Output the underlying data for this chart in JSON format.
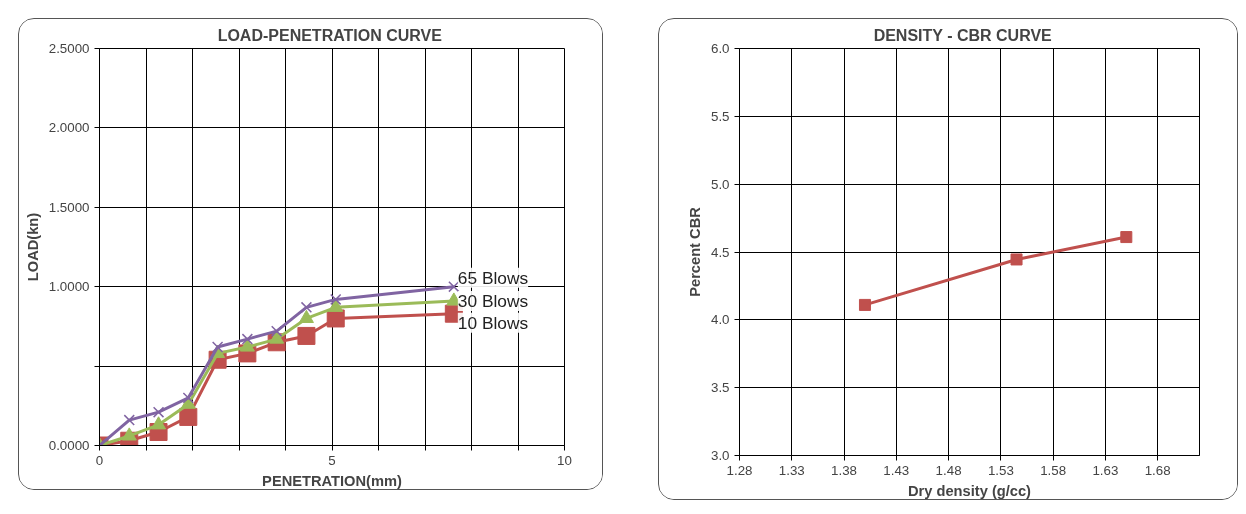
{
  "chart_data": [
    {
      "type": "line",
      "title": "LOAD-PENETRATION  CURVE",
      "xlabel": "PENETRATION(mm)",
      "ylabel": "LOAD(kn)",
      "x": [
        0,
        0.64,
        1.27,
        1.91,
        2.54,
        3.18,
        3.81,
        4.45,
        5.08,
        7.62
      ],
      "series": [
        {
          "name": "10 Blows",
          "color": "#c0504d",
          "marker": "square",
          "values": [
            0,
            0.03,
            0.085,
            0.18,
            0.54,
            0.58,
            0.65,
            0.69,
            0.8,
            0.83
          ]
        },
        {
          "name": "30 Blows",
          "color": "#9bbb59",
          "marker": "triangle",
          "values": [
            0,
            0.06,
            0.13,
            0.26,
            0.58,
            0.62,
            0.67,
            0.8,
            0.87,
            0.91
          ]
        },
        {
          "name": "65 Blows",
          "color": "#8064a2",
          "marker": "cross",
          "values": [
            0,
            0.16,
            0.21,
            0.3,
            0.62,
            0.67,
            0.72,
            0.87,
            0.92,
            1.0
          ]
        }
      ],
      "xlim": [
        0,
        10
      ],
      "xticks": [
        0,
        {
          "value": 1,
          "label": null
        },
        {
          "value": 2,
          "label": null
        },
        {
          "value": 3,
          "label": null
        },
        {
          "value": 4,
          "label": null
        },
        5,
        {
          "value": 6,
          "label": null
        },
        {
          "value": 7,
          "label": null
        },
        {
          "value": 8,
          "label": null
        },
        {
          "value": 9,
          "label": null
        },
        10
      ],
      "ylim": [
        0,
        2.5
      ],
      "yticks": [
        {
          "value": 0,
          "label": "0.0000"
        },
        {
          "value": 0.5,
          "label": null
        },
        {
          "value": 1,
          "label": "1.0000"
        },
        {
          "value": 1.5,
          "label": "1.5000"
        },
        {
          "value": 2,
          "label": "2.0000"
        },
        {
          "value": 2.5,
          "label": "2.5000"
        }
      ],
      "grid": true
    },
    {
      "type": "line",
      "title": "DENSITY   - CBR  CURVE",
      "xlabel": "Dry density (g/cc)",
      "ylabel": "Percent CBR",
      "x": [
        1.4,
        1.545,
        1.65
      ],
      "series": [
        {
          "color": "#c0504d",
          "marker": "square",
          "values": [
            4.11,
            4.445,
            4.61
          ]
        }
      ],
      "xlim": [
        1.28,
        1.72
      ],
      "xticks": [
        1.28,
        1.33,
        1.38,
        1.43,
        1.48,
        1.53,
        1.58,
        1.63,
        1.68
      ],
      "ylim": [
        3.0,
        6.0
      ],
      "yticks": [
        {
          "value": 3,
          "label": "3.0"
        },
        {
          "value": 3.5,
          "label": "3.5"
        },
        {
          "value": 4,
          "label": "4.0"
        },
        {
          "value": 4.5,
          "label": "4.5"
        },
        {
          "value": 5,
          "label": "5.0"
        },
        {
          "value": 5.5,
          "label": "5.5"
        },
        {
          "value": 6,
          "label": "6.0"
        }
      ],
      "grid": true
    }
  ]
}
